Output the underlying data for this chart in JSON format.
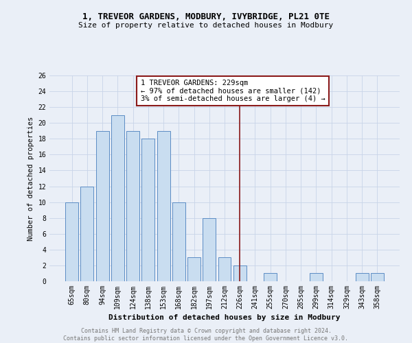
{
  "title1": "1, TREVEOR GARDENS, MODBURY, IVYBRIDGE, PL21 0TE",
  "title2": "Size of property relative to detached houses in Modbury",
  "xlabel": "Distribution of detached houses by size in Modbury",
  "ylabel": "Number of detached properties",
  "categories": [
    "65sqm",
    "80sqm",
    "94sqm",
    "109sqm",
    "124sqm",
    "138sqm",
    "153sqm",
    "168sqm",
    "182sqm",
    "197sqm",
    "212sqm",
    "226sqm",
    "241sqm",
    "255sqm",
    "270sqm",
    "285sqm",
    "299sqm",
    "314sqm",
    "329sqm",
    "343sqm",
    "358sqm"
  ],
  "values": [
    10,
    12,
    19,
    21,
    19,
    18,
    19,
    10,
    3,
    8,
    3,
    2,
    0,
    1,
    0,
    0,
    1,
    0,
    0,
    1,
    1
  ],
  "bar_color": "#c9ddf0",
  "bar_edge_color": "#5b8cc4",
  "vline_index": 11,
  "vline_color": "#8b1a1a",
  "annotation_title": "1 TREVEOR GARDENS: 229sqm",
  "annotation_line2": "← 97% of detached houses are smaller (142)",
  "annotation_line3": "3% of semi-detached houses are larger (4) →",
  "annotation_box_color": "#8b1a1a",
  "ylim": [
    0,
    26
  ],
  "yticks": [
    0,
    2,
    4,
    6,
    8,
    10,
    12,
    14,
    16,
    18,
    20,
    22,
    24,
    26
  ],
  "grid_color": "#c8d4e8",
  "footer_line1": "Contains HM Land Registry data © Crown copyright and database right 2024.",
  "footer_line2": "Contains public sector information licensed under the Open Government Licence v3.0.",
  "bg_color": "#eaeff7",
  "plot_bg_color": "#eaeff7",
  "title1_fontsize": 9,
  "title2_fontsize": 8,
  "xlabel_fontsize": 8,
  "ylabel_fontsize": 7.5,
  "tick_fontsize": 7,
  "ann_fontsize": 7.5,
  "footer_fontsize": 6
}
